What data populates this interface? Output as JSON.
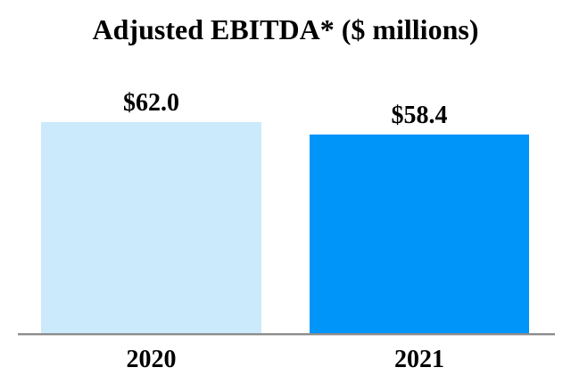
{
  "chart_data": {
    "type": "bar",
    "title": "Adjusted EBITDA* ($ millions)",
    "categories": [
      "2020",
      "2021"
    ],
    "values": [
      62.0,
      58.4
    ],
    "value_labels": [
      "$62.0",
      "$58.4"
    ],
    "xlabel": "",
    "ylabel": "",
    "ylim": [
      0,
      65
    ],
    "grid": false,
    "legend": "none",
    "value_label_position": "above-bar",
    "bar_colors": [
      "#CBEAFB",
      "#0095F9"
    ],
    "axis_line_color": "#8C8C8C",
    "background_color": "#FFFFFF",
    "text_color": "#000000"
  }
}
